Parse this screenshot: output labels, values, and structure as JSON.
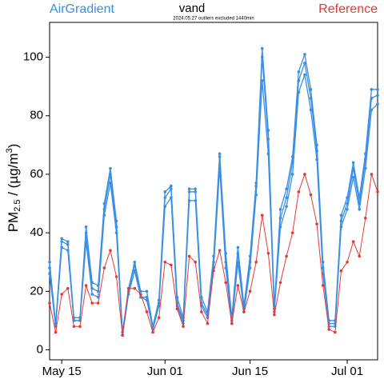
{
  "chart_data": {
    "type": "line",
    "title": "vand",
    "subtitle": "2024.05.27 outliers excluded 1440min",
    "ylabel_parts": [
      "PM",
      "2.5",
      " / (µg/m",
      "3",
      ")"
    ],
    "categories": [
      null,
      null,
      "May 15",
      null,
      null,
      null,
      null,
      null,
      null,
      null,
      null,
      null,
      null,
      null,
      null,
      null,
      null,
      null,
      null,
      "Jun 01",
      null,
      null,
      null,
      null,
      null,
      null,
      null,
      null,
      null,
      null,
      null,
      null,
      null,
      "Jun 15",
      null,
      null,
      null,
      null,
      null,
      null,
      null,
      null,
      null,
      null,
      null,
      null,
      null,
      null,
      null,
      "Jul 01",
      null,
      null,
      null,
      null,
      null
    ],
    "series": [
      {
        "name": "AirGradient",
        "color": "#3a8fe4",
        "values": [
          28,
          8,
          37,
          36,
          10,
          10,
          40,
          21,
          20,
          48,
          60,
          42,
          5,
          20,
          29,
          18,
          18,
          8,
          16,
          52,
          55,
          16,
          10,
          54,
          54,
          16,
          12,
          30,
          66,
          30,
          10,
          33,
          14,
          30,
          56,
          100,
          72,
          14,
          45,
          52,
          64,
          92,
          98,
          86,
          68,
          28,
          9,
          9,
          44,
          50,
          62,
          50,
          65,
          86,
          87
        ]
      },
      {
        "color": "#3a8fe4",
        "values": [
          26,
          8,
          35,
          34,
          10,
          10,
          37,
          19,
          18,
          46,
          57,
          40,
          5,
          19,
          27,
          18,
          17,
          7,
          15,
          49,
          52,
          15,
          9,
          51,
          51,
          15,
          11,
          28,
          62,
          28,
          9,
          30,
          13,
          28,
          53,
          92,
          67,
          13,
          42,
          49,
          60,
          88,
          94,
          82,
          65,
          26,
          8,
          8,
          42,
          48,
          59,
          48,
          62,
          82,
          84
        ]
      },
      {
        "color": "#3a8fe4",
        "values": [
          30,
          9,
          38,
          37,
          11,
          11,
          42,
          23,
          22,
          50,
          62,
          44,
          6,
          21,
          30,
          20,
          20,
          8,
          17,
          54,
          56,
          18,
          11,
          55,
          55,
          18,
          13,
          32,
          67,
          33,
          11,
          35,
          15,
          32,
          57,
          103,
          75,
          15,
          48,
          55,
          66,
          95,
          101,
          89,
          70,
          30,
          10,
          10,
          46,
          52,
          64,
          52,
          67,
          89,
          89
        ]
      },
      {
        "name": "Reference",
        "color": "#e53935",
        "values": [
          16,
          6,
          19,
          21,
          8,
          8,
          22,
          16,
          16,
          28,
          34,
          25,
          5,
          21,
          21,
          19,
          13,
          6,
          11,
          30,
          29,
          14,
          8,
          32,
          30,
          13,
          9,
          27,
          34,
          23,
          9,
          22,
          13,
          20,
          30,
          46,
          33,
          12,
          23,
          32,
          40,
          54,
          60,
          53,
          43,
          22,
          7,
          6,
          27,
          30,
          37,
          32,
          45,
          60,
          54
        ]
      }
    ],
    "ylim": [
      -3.4,
      111.9
    ],
    "yticks": [
      0,
      20,
      40,
      60,
      80,
      100
    ]
  }
}
